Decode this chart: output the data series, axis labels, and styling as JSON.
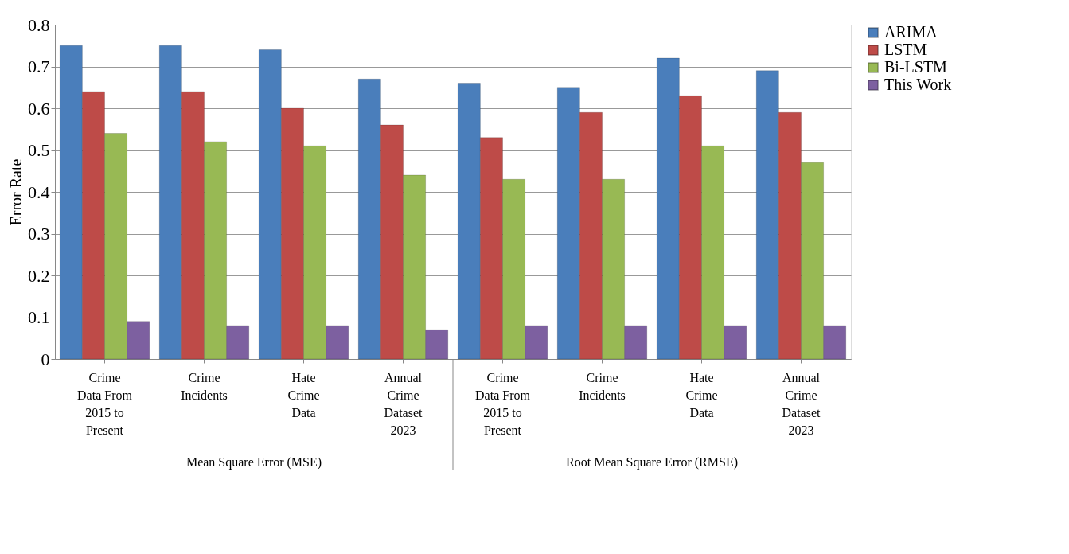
{
  "chart_data": {
    "type": "bar",
    "ylabel": "Error Rate",
    "categories": [
      "Crime\nData From\n2015 to\nPresent",
      "Crime\nIncidents",
      "Hate\nCrime\nData",
      "Annual\nCrime\nDataset\n2023",
      "Crime\nData From\n2015 to\nPresent",
      "Crime\nIncidents",
      "Hate\nCrime\nData",
      "Annual\nCrime\nDataset\n2023"
    ],
    "series": [
      {
        "name": "ARIMA",
        "color": "#4a7ebb",
        "values": [
          0.75,
          0.75,
          0.74,
          0.67,
          0.66,
          0.65,
          0.72,
          0.69
        ]
      },
      {
        "name": "LSTM",
        "color": "#be4b48",
        "values": [
          0.64,
          0.64,
          0.6,
          0.56,
          0.53,
          0.59,
          0.63,
          0.59
        ]
      },
      {
        "name": "Bi-LSTM",
        "color": "#98b954",
        "values": [
          0.54,
          0.52,
          0.51,
          0.44,
          0.43,
          0.43,
          0.51,
          0.47
        ]
      },
      {
        "name": "This Work",
        "color": "#7d60a0",
        "values": [
          0.09,
          0.08,
          0.08,
          0.07,
          0.08,
          0.08,
          0.08,
          0.08
        ]
      }
    ],
    "ylim": [
      0,
      0.8
    ],
    "yticks": [
      0,
      0.1,
      0.2,
      0.3,
      0.4,
      0.5,
      0.6,
      0.7,
      0.8
    ],
    "grid": "y",
    "legend": "right",
    "annotations": [
      "Mean Square Error (MSE)",
      "Root Mean Square Error (RMSE)"
    ]
  }
}
